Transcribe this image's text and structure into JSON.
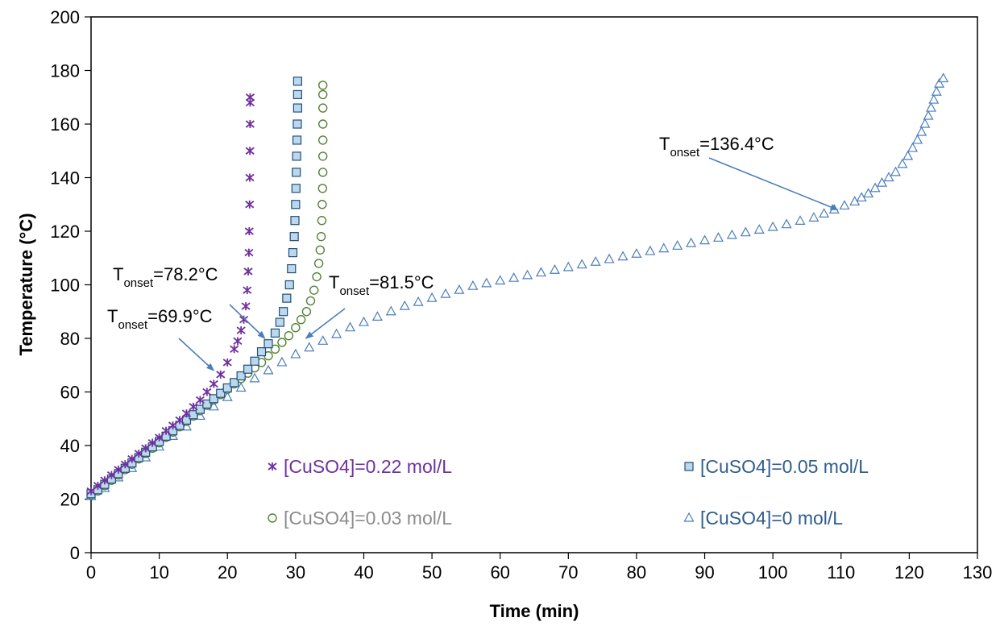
{
  "chart_data": {
    "type": "scatter",
    "xlabel": "Time (min)",
    "ylabel": "Temperature (°C)",
    "xlim": [
      0,
      130
    ],
    "ylim": [
      0,
      200
    ],
    "xticks": [
      "0",
      "10",
      "20",
      "30",
      "40",
      "50",
      "60",
      "70",
      "80",
      "90",
      "100",
      "110",
      "120",
      "130"
    ],
    "yticks": [
      "0",
      "20",
      "40",
      "60",
      "80",
      "100",
      "120",
      "140",
      "160",
      "180",
      "200"
    ],
    "grid": false,
    "legend_position": "inside-bottom",
    "series": [
      {
        "name": "[CuSO4]=0.22 mol/L",
        "marker": "x",
        "color": "#7030A0",
        "label_color": "#7030A0",
        "points": [
          [
            0,
            23
          ],
          [
            1,
            25
          ],
          [
            2,
            27
          ],
          [
            3,
            29
          ],
          [
            4,
            31
          ],
          [
            5,
            33
          ],
          [
            6,
            35
          ],
          [
            7,
            37
          ],
          [
            8,
            39
          ],
          [
            9,
            41
          ],
          [
            10,
            43
          ],
          [
            11,
            45.5
          ],
          [
            12,
            47.5
          ],
          [
            13,
            49.5
          ],
          [
            14,
            52
          ],
          [
            15,
            54.5
          ],
          [
            16,
            57
          ],
          [
            17,
            60
          ],
          [
            18,
            63
          ],
          [
            19,
            66.5
          ],
          [
            20,
            71
          ],
          [
            21,
            76
          ],
          [
            21.5,
            79
          ],
          [
            22,
            83
          ],
          [
            22.4,
            87
          ],
          [
            22.7,
            92
          ],
          [
            22.9,
            98
          ],
          [
            23.05,
            105
          ],
          [
            23.15,
            112
          ],
          [
            23.2,
            120
          ],
          [
            23.25,
            130
          ],
          [
            23.28,
            140
          ],
          [
            23.3,
            150
          ],
          [
            23.32,
            160
          ],
          [
            23.33,
            168
          ],
          [
            23.33,
            170
          ]
        ]
      },
      {
        "name": "[CuSO4]=0.05 mol/L",
        "marker": "square",
        "color": "#1F4E79",
        "fill": "#BDD7EE",
        "label_color": "#2E5D8E",
        "points": [
          [
            0,
            22
          ],
          [
            1,
            23.5
          ],
          [
            2,
            25.5
          ],
          [
            3,
            27.5
          ],
          [
            4,
            29.5
          ],
          [
            5,
            31.5
          ],
          [
            6,
            33.5
          ],
          [
            7,
            35.5
          ],
          [
            8,
            37.5
          ],
          [
            9,
            39.5
          ],
          [
            10,
            41.5
          ],
          [
            11,
            43.5
          ],
          [
            12,
            45.5
          ],
          [
            13,
            47.5
          ],
          [
            14,
            49.5
          ],
          [
            15,
            51.5
          ],
          [
            16,
            53.5
          ],
          [
            17,
            55.5
          ],
          [
            18,
            57.5
          ],
          [
            19,
            59.5
          ],
          [
            20,
            61.5
          ],
          [
            21,
            63.5
          ],
          [
            22,
            66
          ],
          [
            23,
            68.5
          ],
          [
            24,
            71.5
          ],
          [
            25,
            75
          ],
          [
            26,
            78
          ],
          [
            27,
            82
          ],
          [
            27.7,
            86
          ],
          [
            28.2,
            90
          ],
          [
            28.7,
            95
          ],
          [
            29.1,
            100
          ],
          [
            29.4,
            106
          ],
          [
            29.6,
            112
          ],
          [
            29.8,
            118
          ],
          [
            29.9,
            124
          ],
          [
            30,
            130
          ],
          [
            30.05,
            136
          ],
          [
            30.1,
            142
          ],
          [
            30.15,
            148
          ],
          [
            30.2,
            154
          ],
          [
            30.25,
            160
          ],
          [
            30.3,
            166
          ],
          [
            30.3,
            171
          ],
          [
            30.3,
            176
          ]
        ]
      },
      {
        "name": "[CuSO4]=0.03 mol/L",
        "marker": "circle",
        "color": "#548235",
        "label_color": "#8C8C8C",
        "points": [
          [
            0,
            21.5
          ],
          [
            1,
            23
          ],
          [
            2,
            25
          ],
          [
            3,
            27
          ],
          [
            4,
            29
          ],
          [
            5,
            31
          ],
          [
            6,
            33
          ],
          [
            7,
            35
          ],
          [
            8,
            37
          ],
          [
            9,
            39
          ],
          [
            10,
            41
          ],
          [
            11,
            43
          ],
          [
            12,
            45
          ],
          [
            13,
            47
          ],
          [
            14,
            49
          ],
          [
            15,
            51
          ],
          [
            16,
            53
          ],
          [
            17,
            55
          ],
          [
            18,
            57
          ],
          [
            19,
            59
          ],
          [
            20,
            61
          ],
          [
            21,
            63
          ],
          [
            22,
            65
          ],
          [
            23,
            67
          ],
          [
            24,
            69
          ],
          [
            25,
            71
          ],
          [
            26,
            73.5
          ],
          [
            27,
            76
          ],
          [
            28,
            78.5
          ],
          [
            29,
            81
          ],
          [
            30,
            84
          ],
          [
            30.8,
            87
          ],
          [
            31.6,
            90
          ],
          [
            32.2,
            94
          ],
          [
            32.7,
            98
          ],
          [
            33.1,
            103
          ],
          [
            33.4,
            108
          ],
          [
            33.6,
            113
          ],
          [
            33.75,
            118
          ],
          [
            33.85,
            124
          ],
          [
            33.9,
            130
          ],
          [
            33.95,
            136
          ],
          [
            34,
            142
          ],
          [
            34,
            148
          ],
          [
            34,
            154
          ],
          [
            34,
            160
          ],
          [
            34,
            166
          ],
          [
            34,
            171
          ],
          [
            34,
            174.5
          ]
        ]
      },
      {
        "name": "[CuSO4]=0 mol/L",
        "marker": "triangle",
        "color": "#4A7EBB",
        "label_color": "#2E5D8E",
        "points": [
          [
            0,
            21
          ],
          [
            2,
            24
          ],
          [
            4,
            28
          ],
          [
            6,
            31.5
          ],
          [
            8,
            35.5
          ],
          [
            10,
            39.5
          ],
          [
            12,
            43.5
          ],
          [
            14,
            47
          ],
          [
            16,
            51
          ],
          [
            18,
            54.5
          ],
          [
            20,
            58
          ],
          [
            22,
            61.5
          ],
          [
            24,
            65
          ],
          [
            26,
            68
          ],
          [
            28,
            71
          ],
          [
            30,
            74
          ],
          [
            32,
            76.5
          ],
          [
            34,
            79
          ],
          [
            36,
            81.5
          ],
          [
            38,
            84
          ],
          [
            40,
            86
          ],
          [
            42,
            88
          ],
          [
            44,
            90
          ],
          [
            46,
            92
          ],
          [
            48,
            93.5
          ],
          [
            50,
            95
          ],
          [
            52,
            96.5
          ],
          [
            54,
            98
          ],
          [
            56,
            99.5
          ],
          [
            58,
            100.5
          ],
          [
            60,
            101.5
          ],
          [
            62,
            102.5
          ],
          [
            64,
            103.5
          ],
          [
            66,
            104.5
          ],
          [
            68,
            105.5
          ],
          [
            70,
            106.5
          ],
          [
            72,
            107.5
          ],
          [
            74,
            108.5
          ],
          [
            76,
            109.5
          ],
          [
            78,
            110.5
          ],
          [
            80,
            111.5
          ],
          [
            82,
            112.5
          ],
          [
            84,
            113.5
          ],
          [
            86,
            114.5
          ],
          [
            88,
            115.5
          ],
          [
            90,
            116.5
          ],
          [
            92,
            117.5
          ],
          [
            94,
            118.5
          ],
          [
            96,
            119.5
          ],
          [
            98,
            120.5
          ],
          [
            100,
            121.5
          ],
          [
            102,
            122.5
          ],
          [
            104,
            123.8
          ],
          [
            106,
            125
          ],
          [
            107.5,
            126.5
          ],
          [
            109,
            128
          ],
          [
            110.5,
            129.5
          ],
          [
            112,
            131
          ],
          [
            113,
            132.5
          ],
          [
            114,
            134
          ],
          [
            115,
            136
          ],
          [
            116,
            138
          ],
          [
            117,
            140
          ],
          [
            118,
            142
          ],
          [
            119,
            145
          ],
          [
            119.8,
            148
          ],
          [
            120.5,
            151
          ],
          [
            121.2,
            154
          ],
          [
            121.8,
            157
          ],
          [
            122.3,
            160
          ],
          [
            122.8,
            163
          ],
          [
            123.2,
            166
          ],
          [
            123.6,
            169
          ],
          [
            124,
            172
          ],
          [
            124.4,
            175
          ],
          [
            125,
            177
          ]
        ]
      }
    ],
    "annotations": [
      {
        "prefix": "T",
        "sub": "onset",
        "value": "=78.2°C",
        "target": [
          25.5,
          80
        ]
      },
      {
        "prefix": "T",
        "sub": "onset",
        "value": "=69.9°C",
        "target": [
          18,
          68
        ]
      },
      {
        "prefix": "T",
        "sub": "onset",
        "value": "=81.5°C",
        "target": [
          31.5,
          80
        ]
      },
      {
        "prefix": "T",
        "sub": "onset",
        "value": "=136.4°C",
        "target": [
          109.5,
          128
        ]
      }
    ]
  }
}
